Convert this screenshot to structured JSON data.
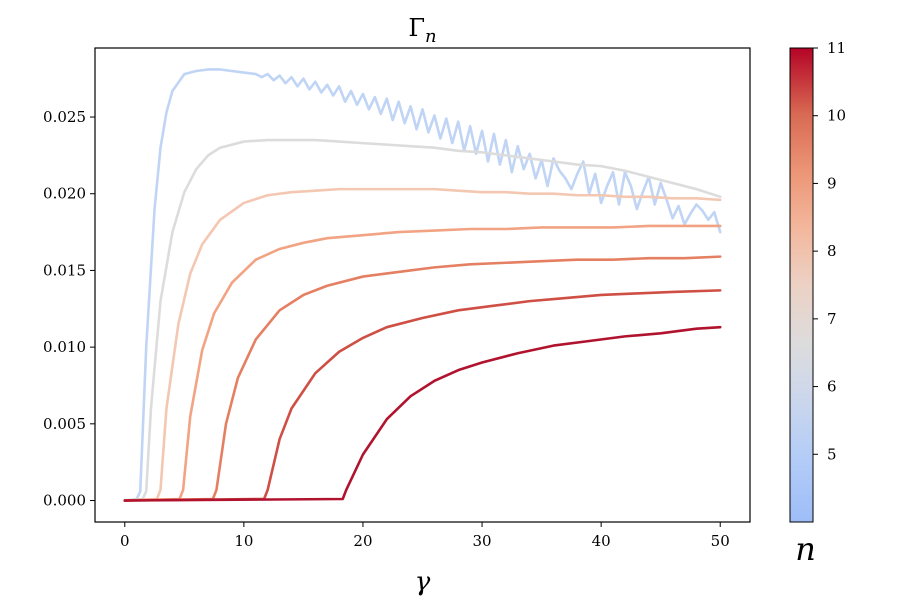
{
  "chart_data": {
    "type": "line",
    "title": "Γ",
    "title_subscript": "n",
    "xlabel": "γ",
    "ylabel": "",
    "xlim": [
      -2.5,
      52.5
    ],
    "ylim": [
      -0.0014,
      0.0295
    ],
    "xticks": [
      0,
      10,
      20,
      30,
      40,
      50
    ],
    "yticks": [
      0.0,
      0.005,
      0.01,
      0.015,
      0.02,
      0.025
    ],
    "ytick_labels": [
      "0.000",
      "0.005",
      "0.010",
      "0.015",
      "0.020",
      "0.025"
    ],
    "grid": false,
    "colorbar": {
      "label": "n",
      "range": [
        4.0,
        11.0
      ],
      "ticks": [
        5,
        6,
        7,
        8,
        9,
        10,
        11
      ],
      "colormap": "coolwarm"
    },
    "series": [
      {
        "n": 5,
        "color": "#c0d4f5",
        "x": [
          0,
          1,
          1.3,
          1.8,
          2.5,
          3,
          3.5,
          4,
          5,
          6,
          7,
          8,
          9,
          10,
          11,
          11.5,
          12,
          12.5,
          13,
          13.5,
          14,
          14.5,
          15,
          15.5,
          16,
          16.5,
          17,
          17.5,
          18,
          18.5,
          19,
          19.5,
          20,
          20.5,
          21,
          21.5,
          22,
          22.5,
          23,
          23.5,
          24,
          24.5,
          25,
          25.5,
          26,
          26.5,
          27,
          27.5,
          28,
          28.5,
          29,
          29.5,
          30,
          30.5,
          31,
          31.5,
          32,
          32.5,
          33,
          33.5,
          34,
          34.5,
          35,
          35.5,
          36,
          36.5,
          37,
          37.5,
          38,
          38.5,
          39,
          39.5,
          40,
          40.5,
          41,
          41.5,
          42,
          42.5,
          43,
          43.5,
          44,
          44.5,
          45,
          45.5,
          46,
          46.5,
          47,
          47.5,
          48,
          48.5,
          49,
          49.5,
          50
        ],
        "y": [
          0.0,
          0.0001,
          0.0006,
          0.01,
          0.019,
          0.023,
          0.0253,
          0.0267,
          0.0278,
          0.028,
          0.0281,
          0.0281,
          0.028,
          0.0279,
          0.0278,
          0.0276,
          0.0278,
          0.0274,
          0.0277,
          0.0272,
          0.0276,
          0.027,
          0.0275,
          0.0268,
          0.0273,
          0.0266,
          0.0271,
          0.0264,
          0.027,
          0.026,
          0.0267,
          0.0258,
          0.0265,
          0.0255,
          0.0263,
          0.0252,
          0.0262,
          0.0248,
          0.026,
          0.0246,
          0.0257,
          0.0242,
          0.0255,
          0.024,
          0.0251,
          0.0236,
          0.0249,
          0.0233,
          0.0247,
          0.0228,
          0.0244,
          0.0226,
          0.0241,
          0.0221,
          0.0239,
          0.0219,
          0.0235,
          0.0214,
          0.0231,
          0.0216,
          0.0226,
          0.021,
          0.0222,
          0.0205,
          0.0223,
          0.0215,
          0.021,
          0.0203,
          0.0213,
          0.0221,
          0.02,
          0.0213,
          0.0194,
          0.0205,
          0.0214,
          0.0193,
          0.0214,
          0.0205,
          0.019,
          0.0201,
          0.0211,
          0.0193,
          0.0207,
          0.0196,
          0.0184,
          0.0192,
          0.018,
          0.0187,
          0.0193,
          0.0189,
          0.0183,
          0.0188,
          0.0175
        ]
      },
      {
        "n": 6,
        "color": "#dcdcdc",
        "x": [
          0,
          1.5,
          1.8,
          2.2,
          3,
          4,
          5,
          6,
          7,
          8,
          10,
          12,
          14,
          16,
          18,
          20,
          22,
          24,
          26,
          28,
          30,
          32,
          34,
          36,
          38,
          40,
          42,
          44,
          46,
          48,
          50
        ],
        "y": [
          0.0,
          0.0001,
          0.0006,
          0.006,
          0.013,
          0.0175,
          0.0201,
          0.0216,
          0.0225,
          0.023,
          0.0234,
          0.0235,
          0.0235,
          0.0235,
          0.0234,
          0.0233,
          0.0232,
          0.0231,
          0.023,
          0.0228,
          0.0227,
          0.0225,
          0.0223,
          0.0221,
          0.0219,
          0.0218,
          0.0215,
          0.0211,
          0.0207,
          0.0203,
          0.0198
        ]
      },
      {
        "n": 7,
        "color": "#f3c7b1",
        "x": [
          0,
          2.7,
          3.0,
          3.5,
          4.5,
          5.5,
          6.5,
          8,
          10,
          12,
          14,
          16,
          18,
          20,
          22,
          24,
          26,
          28,
          30,
          32,
          34,
          36,
          38,
          40,
          42,
          44,
          46,
          48,
          50
        ],
        "y": [
          0.0,
          0.0001,
          0.0007,
          0.006,
          0.0115,
          0.0148,
          0.0167,
          0.0183,
          0.0194,
          0.0199,
          0.0201,
          0.0202,
          0.0203,
          0.0203,
          0.0203,
          0.0203,
          0.0203,
          0.0202,
          0.0201,
          0.0201,
          0.02,
          0.02,
          0.0199,
          0.0199,
          0.0198,
          0.0198,
          0.0197,
          0.0197,
          0.0196
        ]
      },
      {
        "n": 8,
        "color": "#f2a383",
        "x": [
          0,
          4.6,
          4.9,
          5.5,
          6.5,
          7.5,
          9,
          11,
          13,
          15,
          17,
          20,
          23,
          26,
          29,
          32,
          35,
          38,
          41,
          44,
          47,
          50
        ],
        "y": [
          0.0,
          0.0001,
          0.0007,
          0.0055,
          0.0098,
          0.0122,
          0.0142,
          0.0157,
          0.0164,
          0.0168,
          0.0171,
          0.0173,
          0.0175,
          0.0176,
          0.0177,
          0.0177,
          0.0178,
          0.0178,
          0.0178,
          0.0179,
          0.0179,
          0.0179
        ]
      },
      {
        "n": 9,
        "color": "#e57f62",
        "x": [
          0,
          7.4,
          7.7,
          8.5,
          9.5,
          11,
          13,
          15,
          17,
          20,
          23,
          26,
          29,
          32,
          35,
          38,
          41,
          44,
          47,
          50
        ],
        "y": [
          0.0,
          0.0001,
          0.0007,
          0.005,
          0.008,
          0.0105,
          0.0124,
          0.0134,
          0.014,
          0.0146,
          0.0149,
          0.0152,
          0.0154,
          0.0155,
          0.0156,
          0.0157,
          0.0157,
          0.0158,
          0.0158,
          0.0159
        ]
      },
      {
        "n": 10,
        "color": "#cf4f45",
        "x": [
          0,
          11.7,
          12.0,
          13,
          14,
          16,
          18,
          20,
          22,
          25,
          28,
          31,
          34,
          37,
          40,
          43,
          46,
          50
        ],
        "y": [
          0.0,
          0.0001,
          0.0007,
          0.004,
          0.006,
          0.0083,
          0.0097,
          0.0106,
          0.0113,
          0.0119,
          0.0124,
          0.0127,
          0.013,
          0.0132,
          0.0134,
          0.0135,
          0.0136,
          0.0137
        ]
      },
      {
        "n": 11,
        "color": "#b1132f",
        "x": [
          0,
          18.3,
          18.6,
          20,
          22,
          24,
          26,
          28,
          30,
          33,
          36,
          39,
          42,
          45,
          48,
          50
        ],
        "y": [
          0.0,
          0.0001,
          0.0007,
          0.003,
          0.0053,
          0.0068,
          0.0078,
          0.0085,
          0.009,
          0.0096,
          0.0101,
          0.0104,
          0.0107,
          0.0109,
          0.0112,
          0.0113
        ]
      }
    ]
  }
}
